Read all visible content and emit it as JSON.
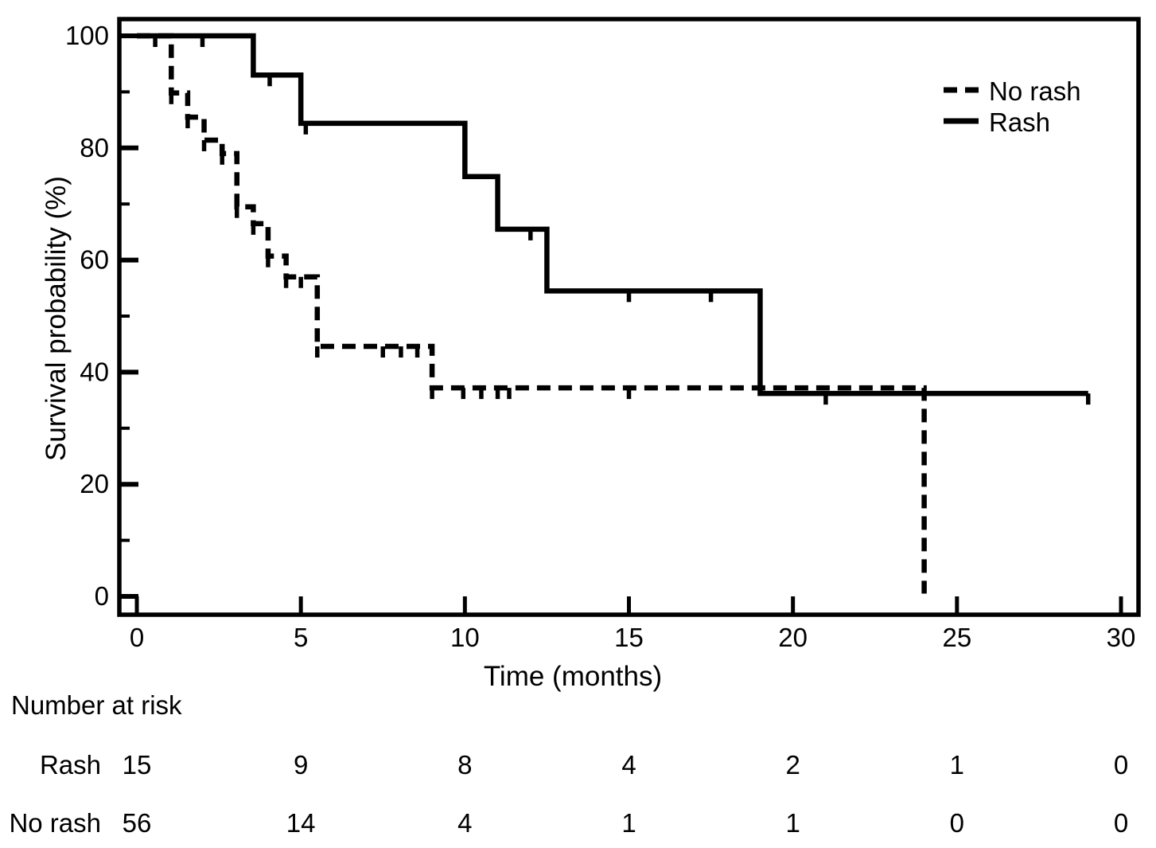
{
  "colors": {
    "line": "#000000",
    "background": "#ffffff"
  },
  "chart_data": {
    "type": "line",
    "subtype": "kaplan_meier_step",
    "title": "",
    "xlabel": "Time (months)",
    "ylabel": "Survival probability (%)",
    "xlim": [
      0,
      30
    ],
    "ylim": [
      0,
      100
    ],
    "xticks": [
      0,
      5,
      10,
      15,
      20,
      25,
      30
    ],
    "yticks_major": [
      0,
      20,
      40,
      60,
      80,
      100
    ],
    "yticks_minor": [
      10,
      30,
      50,
      70,
      90
    ],
    "grid": false,
    "legend": {
      "position": "top-right",
      "entries": [
        {
          "label": "No rash",
          "style": "dashed"
        },
        {
          "label": "Rash",
          "style": "solid"
        }
      ]
    },
    "series": [
      {
        "name": "No rash",
        "style": "dashed",
        "steps": [
          [
            0,
            100
          ],
          [
            1.05,
            89.8
          ],
          [
            1.55,
            85.5
          ],
          [
            2.05,
            81.4
          ],
          [
            2.6,
            79.0
          ],
          [
            3.05,
            69.5
          ],
          [
            3.55,
            66.5
          ],
          [
            4.0,
            60.7
          ],
          [
            4.55,
            57.0
          ],
          [
            5.5,
            44.6
          ],
          [
            9.0,
            37.2
          ],
          [
            24,
            0.5
          ]
        ],
        "end": 24,
        "censors": [
          [
            0.56,
            100
          ],
          [
            1.05,
            89.8
          ],
          [
            1.55,
            85.5
          ],
          [
            2.05,
            81.4
          ],
          [
            2.6,
            79.0
          ],
          [
            3.05,
            69.5
          ],
          [
            3.55,
            66.5
          ],
          [
            4.0,
            60.7
          ],
          [
            4.55,
            57.0
          ],
          [
            5.0,
            57.0
          ],
          [
            5.5,
            44.6
          ],
          [
            7.5,
            44.6
          ],
          [
            8.05,
            44.6
          ],
          [
            8.55,
            44.6
          ],
          [
            9.0,
            37.2
          ],
          [
            9.95,
            37.2
          ],
          [
            10.5,
            37.2
          ],
          [
            11.0,
            37.2
          ],
          [
            11.35,
            37.2
          ],
          [
            15.0,
            37.2
          ]
        ]
      },
      {
        "name": "Rash",
        "style": "solid",
        "steps": [
          [
            0,
            100
          ],
          [
            3.55,
            93.0
          ],
          [
            5.0,
            84.4
          ],
          [
            10.0,
            74.9
          ],
          [
            11.0,
            65.5
          ],
          [
            12.5,
            54.5
          ],
          [
            19.0,
            36.2
          ]
        ],
        "end": 29,
        "censors": [
          [
            2.0,
            100
          ],
          [
            4.05,
            93.0
          ],
          [
            5.15,
            84.4
          ],
          [
            12.0,
            65.5
          ],
          [
            15.0,
            54.5
          ],
          [
            17.5,
            54.5
          ],
          [
            21.0,
            36.2
          ],
          [
            29.0,
            36.2
          ]
        ]
      }
    ]
  },
  "risk_table": {
    "title": "Number at risk",
    "time_points": [
      0,
      5,
      10,
      15,
      20,
      25,
      30
    ],
    "rows": [
      {
        "label": "Rash",
        "values": [
          "15",
          "9",
          "8",
          "4",
          "2",
          "1",
          "0"
        ]
      },
      {
        "label": "No rash",
        "values": [
          "56",
          "14",
          "4",
          "1",
          "1",
          "0",
          "0"
        ]
      }
    ]
  }
}
